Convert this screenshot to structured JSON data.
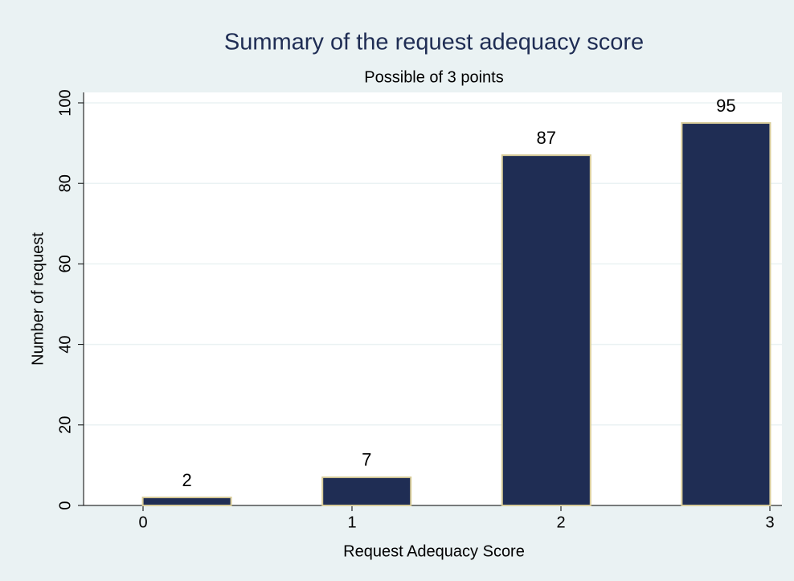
{
  "chart_data": {
    "type": "bar",
    "title": "Summary of the request adequacy score",
    "subtitle": "Possible of 3 points",
    "x_label": "Request Adequacy Score",
    "y_label": "Number of request",
    "x": [
      0.21,
      1.07,
      1.93,
      2.79
    ],
    "values": [
      2,
      7,
      87,
      95
    ],
    "color": "#1f2d54",
    "edge_color": "#d8cc99",
    "xlim": [
      0,
      3
    ],
    "xticks": [
      0,
      1,
      2,
      3
    ],
    "ylim": [
      0,
      100
    ],
    "yticks": [
      0,
      20,
      40,
      60,
      80,
      100
    ],
    "grid": true
  }
}
